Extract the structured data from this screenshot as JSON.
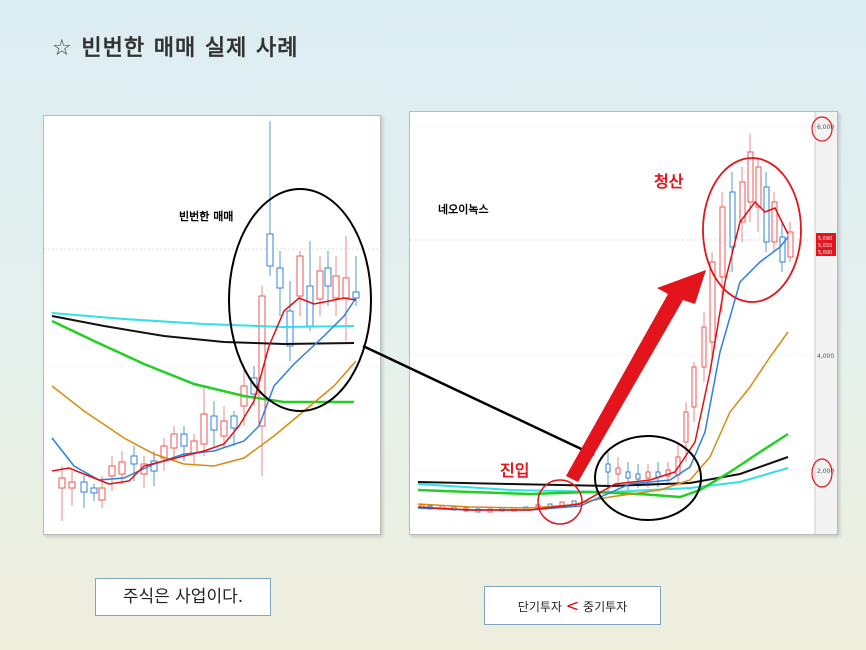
{
  "title": "☆ 빈번한 매매 실제 사례",
  "left_chart": {
    "label": "빈번한 매매"
  },
  "right_chart": {
    "label": "네오이녹스",
    "entry_label": "진입",
    "exit_label": "청산",
    "axis_ticks": [
      "6,000",
      "4,000",
      "2,000"
    ],
    "price_tags": [
      "5,690",
      "5,650",
      "5,600"
    ]
  },
  "slogan": "주식은 사업이다.",
  "comparison": {
    "left": "단기투자",
    "symbol": "<",
    "right": "중기투자"
  },
  "colors": {
    "accent_red": "#e3141b",
    "ma_cyan": "#33e0e8",
    "ma_green": "#22d022",
    "ma_orange": "#d98a12",
    "ma_blue": "#2f7fe0",
    "ma_red": "#e01010",
    "ma_black": "#111111"
  }
}
